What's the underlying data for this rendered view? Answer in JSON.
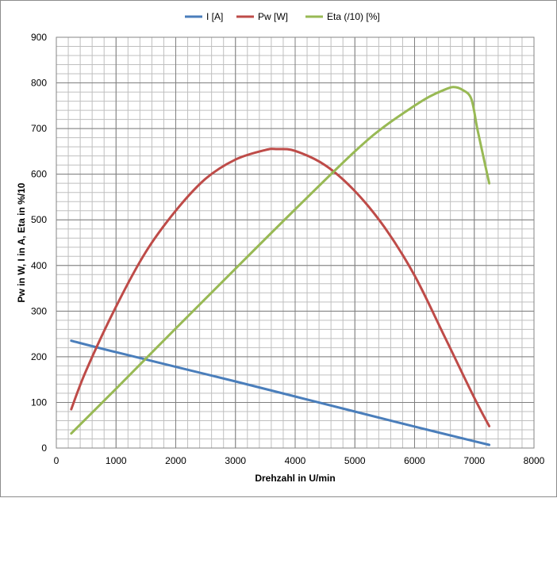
{
  "chart_data": {
    "type": "line",
    "xlabel": "Drehzahl in U/min",
    "ylabel": "Pw in W, I in A, Eta in %/10",
    "xlim": [
      0,
      8000
    ],
    "ylim": [
      0,
      900
    ],
    "x_ticks": [
      0,
      1000,
      2000,
      3000,
      4000,
      5000,
      6000,
      7000,
      8000
    ],
    "y_ticks": [
      0,
      100,
      200,
      300,
      400,
      500,
      600,
      700,
      800,
      900
    ],
    "grid": true,
    "legend_position": "top",
    "series": [
      {
        "name": "I [A]",
        "color": "#4a7ebb",
        "x": [
          250,
          1000,
          2000,
          3000,
          4000,
          5000,
          6000,
          7000,
          7250
        ],
        "y": [
          235,
          210,
          178,
          146,
          113,
          80,
          47,
          15,
          7
        ]
      },
      {
        "name": "Pw [W]",
        "color": "#be4b48",
        "x": [
          250,
          500,
          1000,
          1500,
          2000,
          2500,
          3000,
          3500,
          3700,
          4000,
          4500,
          5000,
          5500,
          6000,
          6500,
          7000,
          7250
        ],
        "y": [
          85,
          170,
          310,
          430,
          520,
          590,
          632,
          653,
          655,
          651,
          620,
          563,
          483,
          378,
          245,
          110,
          48
        ]
      },
      {
        "name": "Eta (/10) [%]",
        "color": "#98b954",
        "x": [
          250,
          1000,
          2000,
          3000,
          4000,
          5000,
          5500,
          6000,
          6250,
          6500,
          6650,
          6800,
          6950,
          7050,
          7150,
          7250
        ],
        "y": [
          32,
          130,
          262,
          393,
          523,
          650,
          705,
          750,
          770,
          785,
          791,
          785,
          765,
          700,
          640,
          580
        ]
      }
    ]
  }
}
